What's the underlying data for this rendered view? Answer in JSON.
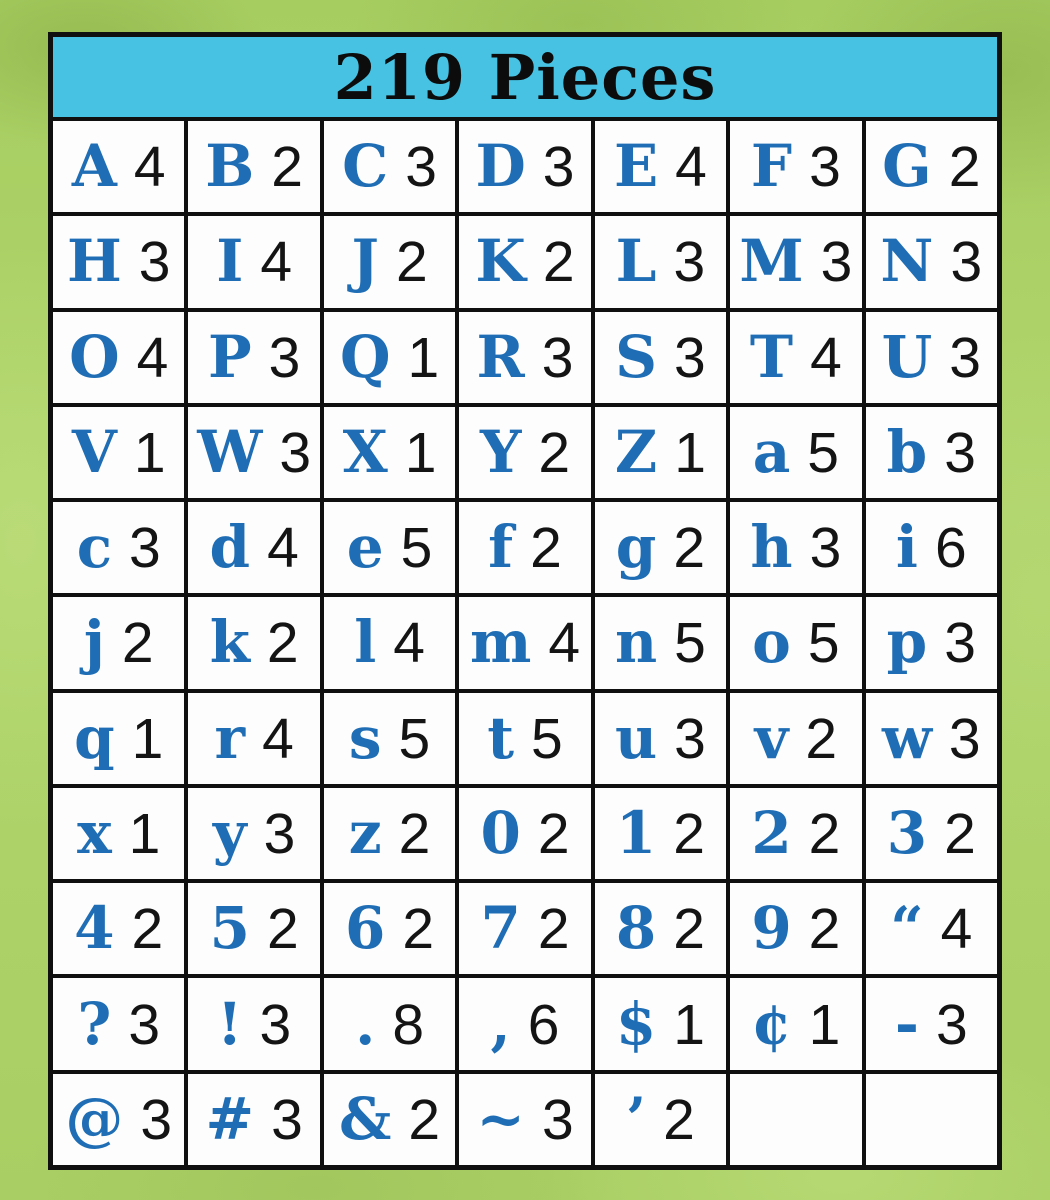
{
  "title": "219 Pieces",
  "total_pieces": 219,
  "colors": {
    "header_bg": "#47c2e2",
    "glyph_blue": "#1f6eb5",
    "count_black": "#141414",
    "border_black": "#101010",
    "cell_white": "#fdfdfd",
    "bg_green": "#abd166"
  },
  "chart_data": {
    "type": "table",
    "title": "219 Pieces",
    "columns": 7,
    "rows": 11,
    "cells": [
      {
        "char": "A",
        "count": 4
      },
      {
        "char": "B",
        "count": 2
      },
      {
        "char": "C",
        "count": 3
      },
      {
        "char": "D",
        "count": 3
      },
      {
        "char": "E",
        "count": 4
      },
      {
        "char": "F",
        "count": 3
      },
      {
        "char": "G",
        "count": 2
      },
      {
        "char": "H",
        "count": 3
      },
      {
        "char": "I",
        "count": 4
      },
      {
        "char": "J",
        "count": 2
      },
      {
        "char": "K",
        "count": 2
      },
      {
        "char": "L",
        "count": 3
      },
      {
        "char": "M",
        "count": 3
      },
      {
        "char": "N",
        "count": 3
      },
      {
        "char": "O",
        "count": 4
      },
      {
        "char": "P",
        "count": 3
      },
      {
        "char": "Q",
        "count": 1
      },
      {
        "char": "R",
        "count": 3
      },
      {
        "char": "S",
        "count": 3
      },
      {
        "char": "T",
        "count": 4
      },
      {
        "char": "U",
        "count": 3
      },
      {
        "char": "V",
        "count": 1
      },
      {
        "char": "W",
        "count": 3
      },
      {
        "char": "X",
        "count": 1
      },
      {
        "char": "Y",
        "count": 2
      },
      {
        "char": "Z",
        "count": 1
      },
      {
        "char": "a",
        "count": 5
      },
      {
        "char": "b",
        "count": 3
      },
      {
        "char": "c",
        "count": 3
      },
      {
        "char": "d",
        "count": 4
      },
      {
        "char": "e",
        "count": 5
      },
      {
        "char": "f",
        "count": 2
      },
      {
        "char": "g",
        "count": 2
      },
      {
        "char": "h",
        "count": 3
      },
      {
        "char": "i",
        "count": 6
      },
      {
        "char": "j",
        "count": 2
      },
      {
        "char": "k",
        "count": 2
      },
      {
        "char": "l",
        "count": 4
      },
      {
        "char": "m",
        "count": 4
      },
      {
        "char": "n",
        "count": 5
      },
      {
        "char": "o",
        "count": 5
      },
      {
        "char": "p",
        "count": 3
      },
      {
        "char": "q",
        "count": 1
      },
      {
        "char": "r",
        "count": 4
      },
      {
        "char": "s",
        "count": 5
      },
      {
        "char": "t",
        "count": 5
      },
      {
        "char": "u",
        "count": 3
      },
      {
        "char": "v",
        "count": 2
      },
      {
        "char": "w",
        "count": 3
      },
      {
        "char": "x",
        "count": 1
      },
      {
        "char": "y",
        "count": 3
      },
      {
        "char": "z",
        "count": 2
      },
      {
        "char": "0",
        "count": 2
      },
      {
        "char": "1",
        "count": 2
      },
      {
        "char": "2",
        "count": 2
      },
      {
        "char": "3",
        "count": 2
      },
      {
        "char": "4",
        "count": 2
      },
      {
        "char": "5",
        "count": 2
      },
      {
        "char": "6",
        "count": 2
      },
      {
        "char": "7",
        "count": 2
      },
      {
        "char": "8",
        "count": 2
      },
      {
        "char": "9",
        "count": 2
      },
      {
        "char": "“",
        "count": 4
      },
      {
        "char": "?",
        "count": 3
      },
      {
        "char": "!",
        "count": 3
      },
      {
        "char": ".",
        "count": 8
      },
      {
        "char": ",",
        "count": 6
      },
      {
        "char": "$",
        "count": 1
      },
      {
        "char": "¢",
        "count": 1
      },
      {
        "char": "-",
        "count": 3
      },
      {
        "char": "@",
        "count": 3
      },
      {
        "char": "#",
        "count": 3
      },
      {
        "char": "&",
        "count": 2
      },
      {
        "char": "~",
        "count": 3
      },
      {
        "char": "’",
        "count": 2
      },
      {
        "char": "",
        "count": ""
      },
      {
        "char": "",
        "count": ""
      }
    ]
  }
}
